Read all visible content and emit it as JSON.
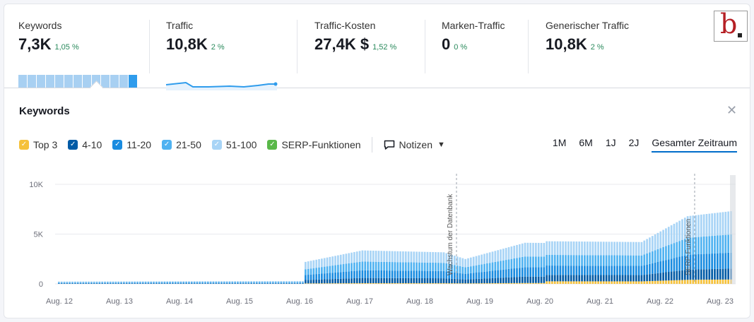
{
  "metrics": [
    {
      "label": "Keywords",
      "value": "7,3K",
      "change": "1,05 %"
    },
    {
      "label": "Traffic",
      "value": "10,8K",
      "change": "2 %"
    },
    {
      "label": "Traffic-Kosten",
      "value": "27,4K $",
      "change": "1,52 %"
    },
    {
      "label": "Marken-Traffic",
      "value": "0",
      "change": "0 %"
    },
    {
      "label": "Generischer Traffic",
      "value": "10,8K",
      "change": "2 %"
    }
  ],
  "panel": {
    "title": "Keywords",
    "close_icon": "close-icon"
  },
  "legend": [
    {
      "label": "Top 3",
      "color": "#f5c13a"
    },
    {
      "label": "4-10",
      "color": "#005ba6"
    },
    {
      "label": "11-20",
      "color": "#1a8ce0"
    },
    {
      "label": "21-50",
      "color": "#4fb2f1"
    },
    {
      "label": "51-100",
      "color": "#a8d4f6"
    },
    {
      "label": "SERP-Funktionen",
      "color": "#59b849"
    }
  ],
  "notes": {
    "label": "Notizen",
    "icon": "comment-icon"
  },
  "ranges": [
    "1M",
    "6M",
    "1J",
    "2J",
    "Gesamter Zeitraum"
  ],
  "active_range": "Gesamter Zeitraum",
  "chart_data": {
    "type": "bar",
    "stacked": true,
    "y_ticks": [
      "10K",
      "5K",
      "0"
    ],
    "ylim": [
      0,
      10000
    ],
    "x_ticks": [
      "Aug. 12",
      "Aug. 13",
      "Aug. 14",
      "Aug. 15",
      "Aug. 16",
      "Aug. 17",
      "Aug. 18",
      "Aug. 19",
      "Aug. 20",
      "Aug. 21",
      "Aug. 22",
      "Aug. 23"
    ],
    "grid": true,
    "annotations": [
      {
        "label": "Wachstum der Datenbank",
        "x": "Aug. 18"
      },
      {
        "label": "SERP-Funktionen",
        "x": "Aug. 22"
      }
    ],
    "series": [
      {
        "name": "Top 3",
        "color": "#f5c13a"
      },
      {
        "name": "4-10",
        "color": "#005ba6"
      },
      {
        "name": "11-20",
        "color": "#1a8ce0"
      },
      {
        "name": "21-50",
        "color": "#4fb2f1"
      },
      {
        "name": "51-100",
        "color": "#a8d4f6"
      }
    ],
    "totals": [
      {
        "x": "Aug. 12",
        "value": 250
      },
      {
        "x": "Aug. 16",
        "value": 300
      },
      {
        "x": "Aug. 16",
        "value": 2300
      },
      {
        "x": "Aug. 17",
        "value": 3500
      },
      {
        "x": "Aug. 18",
        "value": 3300
      },
      {
        "x": "Aug. 19",
        "value": 2600
      },
      {
        "x": "Aug. 20",
        "value": 4300
      },
      {
        "x": "Aug. 21",
        "value": 4200
      },
      {
        "x": "Aug. 22",
        "value": 6800
      },
      {
        "x": "Aug. 23",
        "value": 7300
      }
    ],
    "shares": [
      0.06,
      0.15,
      0.22,
      0.25,
      0.32
    ]
  }
}
